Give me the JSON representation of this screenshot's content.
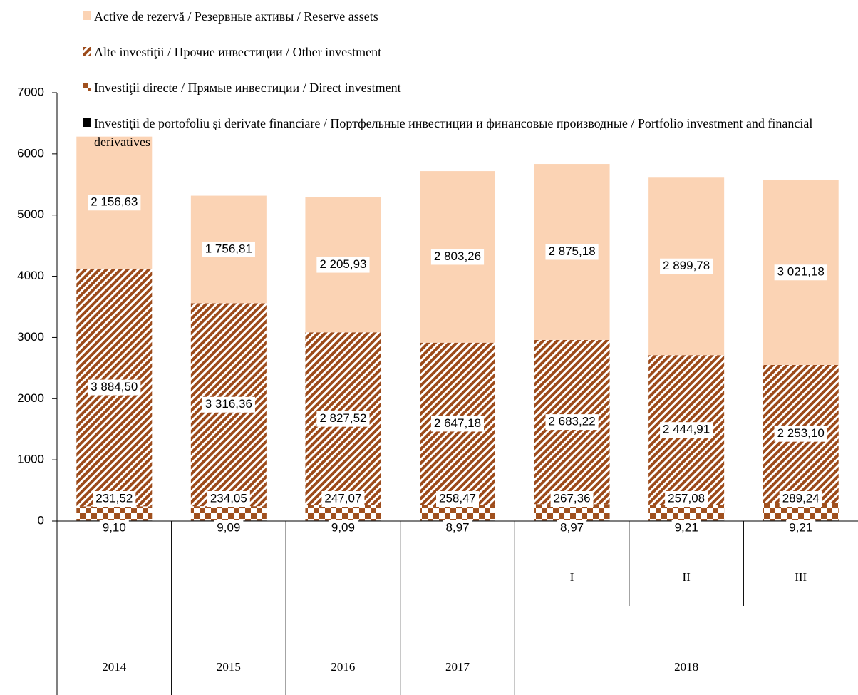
{
  "chart_data": {
    "type": "stacked_bar",
    "categories": [
      "2014",
      "2015",
      "2016",
      "2017",
      "I",
      "II",
      "III"
    ],
    "category_group": {
      "label": "2018",
      "indices": [
        4,
        5,
        6
      ]
    },
    "series": [
      {
        "name": "Investiţii de portofoliu şi derivate financiare / Портфельные инвестиции и финансовые производные / Portfolio investment and financial derivatives",
        "color": "#000000",
        "pattern": "solid",
        "values": [
          9.1,
          9.09,
          9.09,
          8.97,
          8.97,
          9.21,
          9.21
        ],
        "value_labels": [
          "9,10",
          "9,09",
          "9,09",
          "8,97",
          "8,97",
          "9,21",
          "9,21"
        ]
      },
      {
        "name": "Investiţii directe /  Прямые инвестиции / Direct investment",
        "color": "#a0501e",
        "pattern": "checker",
        "values": [
          231.52,
          234.05,
          247.07,
          258.47,
          267.36,
          257.08,
          289.24
        ],
        "value_labels": [
          "231,52",
          "234,05",
          "247,07",
          "258,47",
          "267,36",
          "257,08",
          "289,24"
        ]
      },
      {
        "name": "Alte investiţii / Прочие инвестиции / Other investment",
        "color": "#9c4a1a",
        "pattern": "hatch",
        "values": [
          3884.5,
          3316.36,
          2827.52,
          2647.18,
          2683.22,
          2444.91,
          2253.1
        ],
        "value_labels": [
          "3 884,50",
          "3 316,36",
          "2 827,52",
          "2 647,18",
          "2 683,22",
          "2 444,91",
          "2 253,10"
        ]
      },
      {
        "name": "Active de rezervă / Резервные активы / Reserve assets",
        "color": "#fbd3b4",
        "pattern": "solid",
        "values": [
          2156.63,
          1756.81,
          2205.93,
          2803.26,
          2875.18,
          2899.78,
          3021.18
        ],
        "value_labels": [
          "2 156,63",
          "1 756,81",
          "2 205,93",
          "2 803,26",
          "2 875,18",
          "2 899,78",
          "3 021,18"
        ]
      }
    ],
    "ylim": [
      0,
      7000
    ],
    "yticks": [
      0,
      1000,
      2000,
      3000,
      4000,
      5000,
      6000,
      7000
    ],
    "grid": false
  }
}
